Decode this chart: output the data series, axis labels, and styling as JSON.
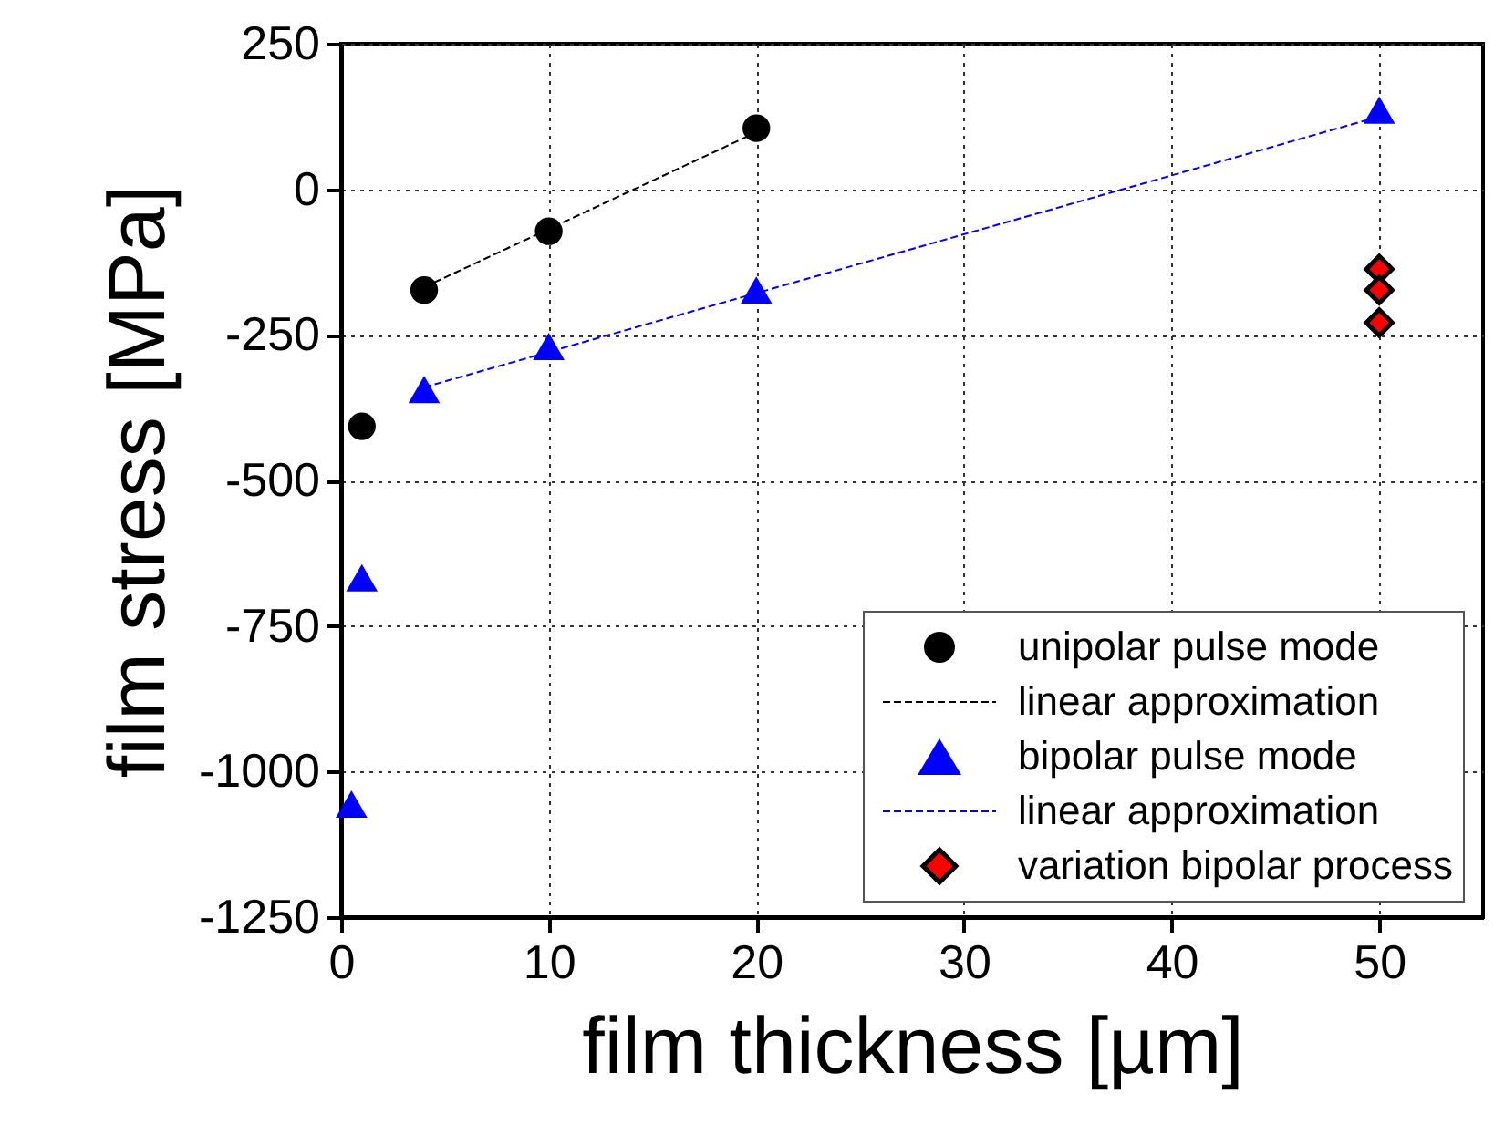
{
  "chart_data": {
    "type": "scatter",
    "xlabel": "film thickness [µm]",
    "ylabel": "film stress [MPa]",
    "xlim": [
      0,
      55
    ],
    "xticks": [
      0,
      10,
      20,
      30,
      40,
      50
    ],
    "ylim": [
      -1250,
      250
    ],
    "yticks": [
      -1250,
      -1000,
      -750,
      -500,
      -250,
      0,
      250
    ],
    "grid": true,
    "legend": "bottom right",
    "series": [
      {
        "name": "unipolar pulse mode",
        "marker": "circle",
        "color": "#000000",
        "x": [
          1,
          4,
          10,
          20
        ],
        "values": [
          -407,
          -173,
          -72,
          105
        ]
      },
      {
        "name": "linear approximation",
        "type": "line",
        "line_style": "dashed",
        "color": "#000000",
        "x": [
          4,
          20
        ],
        "values": [
          -168,
          98
        ]
      },
      {
        "name": "bipolar pulse mode",
        "marker": "triangle",
        "color": "#0000ff",
        "x": [
          0.5,
          1,
          4,
          10,
          20,
          50
        ],
        "values": [
          -1056,
          -667,
          -344,
          -270,
          -173,
          136
        ]
      },
      {
        "name": "linear approximation",
        "type": "line",
        "line_style": "dashed",
        "color": "#0000ff",
        "x": [
          4,
          50
        ],
        "values": [
          -340,
          125
        ]
      },
      {
        "name": "variation bipolar process",
        "marker": "diamond",
        "color": "#ff0000",
        "x": [
          50,
          50,
          50
        ],
        "values": [
          -137,
          -173,
          -229
        ]
      }
    ]
  }
}
